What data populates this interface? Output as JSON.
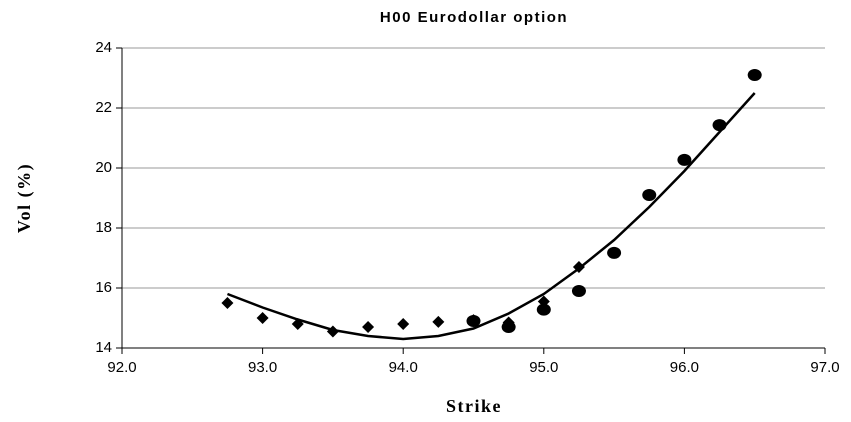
{
  "chart_data": {
    "type": "scatter",
    "title": "H00 Eurodollar option",
    "xlabel": "Strike",
    "ylabel": "Vol (%)",
    "xlim": [
      92,
      97
    ],
    "xticks": [
      {
        "value": 92,
        "label": "92.0"
      },
      {
        "value": 93,
        "label": "93.0"
      },
      {
        "value": 94,
        "label": "94.0"
      },
      {
        "value": 95,
        "label": "95.0"
      },
      {
        "value": 96,
        "label": "96.0"
      },
      {
        "value": 97,
        "label": "97.0"
      }
    ],
    "ylim": [
      14,
      24
    ],
    "yticks": [
      14,
      16,
      18,
      20,
      22,
      24
    ],
    "grid": true,
    "series": [
      {
        "marker": "diamond",
        "color": "#000000",
        "x": [
          92.75,
          93.0,
          93.25,
          93.5,
          93.75,
          94.0,
          94.25,
          94.5,
          94.75,
          95.0,
          95.25
        ],
        "values": [
          15.5,
          15.0,
          14.8,
          14.55,
          14.7,
          14.8,
          14.87,
          14.93,
          14.85,
          15.55,
          16.7
        ]
      },
      {
        "marker": "circle",
        "color": "#000000",
        "x": [
          94.5,
          94.75,
          95.0,
          95.25,
          95.5,
          95.75,
          96.0,
          96.25,
          96.5
        ],
        "values": [
          14.9,
          14.7,
          15.28,
          15.9,
          17.17,
          19.1,
          20.27,
          21.43,
          23.1
        ]
      },
      {
        "marker": "line",
        "color": "#000000",
        "x": [
          92.75,
          93.0,
          93.25,
          93.5,
          93.75,
          94.0,
          94.25,
          94.5,
          94.75,
          95.0,
          95.25,
          95.5,
          95.75,
          96.0,
          96.25,
          96.5
        ],
        "values": [
          15.8,
          15.35,
          14.95,
          14.6,
          14.4,
          14.3,
          14.4,
          14.65,
          15.15,
          15.8,
          16.65,
          17.6,
          18.7,
          19.9,
          21.2,
          22.5
        ]
      }
    ]
  }
}
